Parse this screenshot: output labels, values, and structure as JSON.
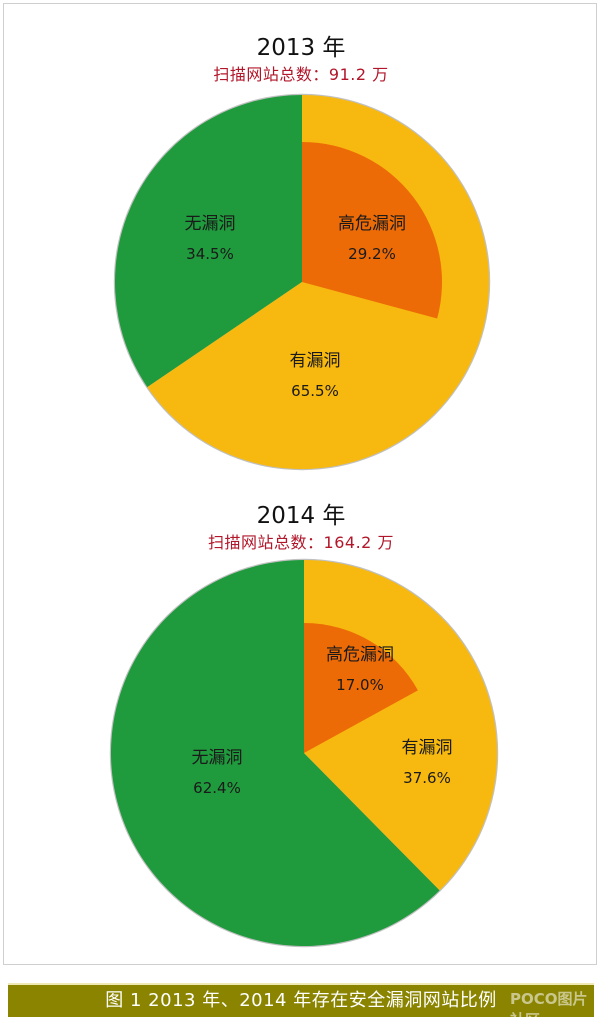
{
  "colors": {
    "no_vuln": "#1f9a3d",
    "has_vuln": "#f7b90f",
    "high_risk": "#ec6b07",
    "outline": "#c0c0c0",
    "caption_bg": "#8a8400",
    "subtitle": "#b2162a"
  },
  "chart_data": [
    {
      "type": "pie",
      "title": "2013 年",
      "subtitle": "扫描网站总数：91.2 万",
      "slices": [
        {
          "label": "无漏洞",
          "value": 34.5,
          "display": "34.5%"
        },
        {
          "label": "有漏洞",
          "value": 65.5,
          "display": "65.5%"
        }
      ],
      "sub_slice": {
        "label": "高危漏洞",
        "value": 29.2,
        "display": "29.2%"
      }
    },
    {
      "type": "pie",
      "title": "2014 年",
      "subtitle": "扫描网站总数：164.2 万",
      "slices": [
        {
          "label": "无漏洞",
          "value": 62.4,
          "display": "62.4%"
        },
        {
          "label": "有漏洞",
          "value": 37.6,
          "display": "37.6%"
        }
      ],
      "sub_slice": {
        "label": "高危漏洞",
        "value": 17.0,
        "display": "17.0%"
      }
    }
  ],
  "caption": "图 1 2013 年、2014 年存在安全漏洞网站比例",
  "watermark": "POCO图片社区"
}
